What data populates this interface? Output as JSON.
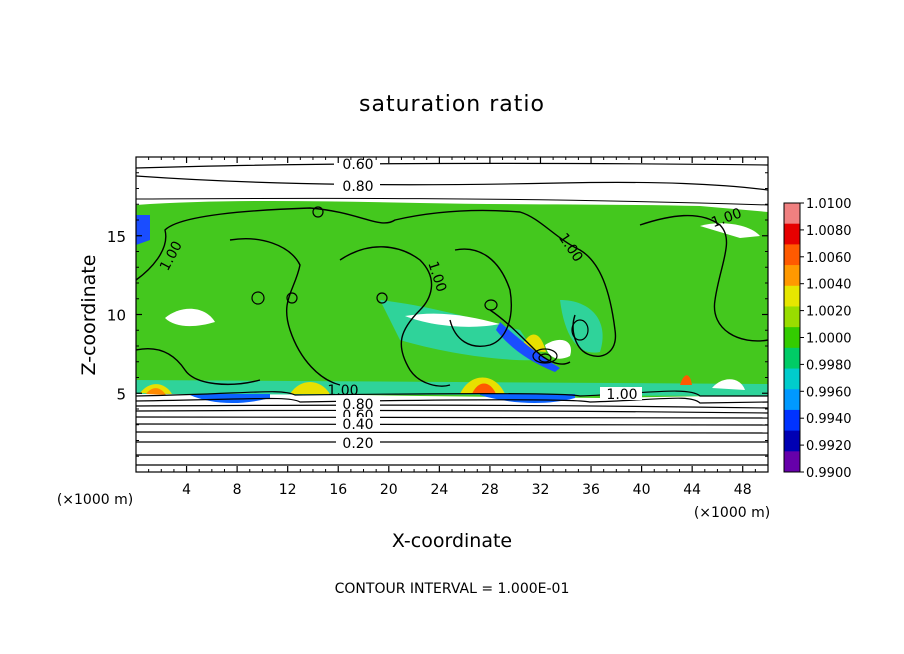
{
  "chart_data": {
    "type": "heatmap",
    "title": "saturation ratio",
    "xlabel": "X-coordinate",
    "ylabel": "Z-coordinate",
    "x_unit_label": "(×1000 m)",
    "z_unit_label": "(×1000 m)",
    "xlim": [
      0,
      50
    ],
    "ylim": [
      0,
      20
    ],
    "x_ticks": [
      "4",
      "8",
      "12",
      "16",
      "20",
      "24",
      "28",
      "32",
      "36",
      "40",
      "44",
      "48"
    ],
    "y_ticks": [
      "5",
      "10",
      "15"
    ],
    "footer": "CONTOUR INTERVAL = 1.000E-01",
    "contour_labels": [
      "0.60",
      "0.80",
      "1.00",
      "1.00",
      "1.00",
      "1.00",
      "1.00",
      "1.00",
      "0.80",
      "0.60",
      "0.40",
      "0.20"
    ],
    "colorbar": {
      "labels": [
        "1.0100",
        "1.0080",
        "1.0060",
        "1.0040",
        "1.0020",
        "1.0000",
        "0.9980",
        "0.9960",
        "0.9940",
        "0.9920",
        "0.9900"
      ],
      "colors": [
        "#f08080",
        "#e60000",
        "#ff5a00",
        "#ff9900",
        "#e6e600",
        "#99dd00",
        "#33cc00",
        "#00cc66",
        "#00cccc",
        "#0099ff",
        "#0033ff",
        "#0000b3",
        "#6600aa"
      ]
    },
    "grid": false
  }
}
